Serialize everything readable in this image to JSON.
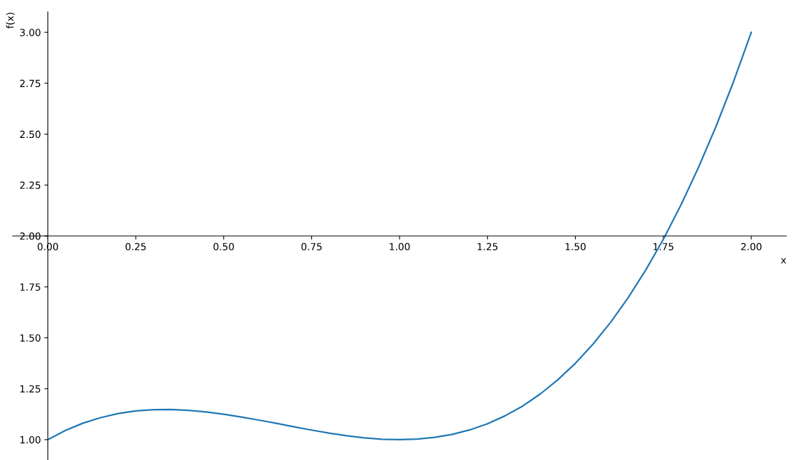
{
  "chart_data": {
    "type": "line",
    "xlabel": "x",
    "ylabel": "f(x)",
    "x": [
      0,
      0.05,
      0.1,
      0.15,
      0.2,
      0.25,
      0.3,
      0.35,
      0.4,
      0.45,
      0.5,
      0.55,
      0.6,
      0.65,
      0.7,
      0.75,
      0.8,
      0.85,
      0.9,
      0.95,
      1.0,
      1.05,
      1.1,
      1.15,
      1.2,
      1.25,
      1.3,
      1.35,
      1.4,
      1.45,
      1.5,
      1.55,
      1.6,
      1.65,
      1.7,
      1.75,
      1.8,
      1.85,
      1.9,
      1.95,
      2.0
    ],
    "series": [
      {
        "color": "#1f77b4",
        "values": [
          1,
          1.045,
          1.081,
          1.108,
          1.128,
          1.141,
          1.147,
          1.148,
          1.144,
          1.136,
          1.125,
          1.111,
          1.096,
          1.08,
          1.063,
          1.047,
          1.032,
          1.019,
          1.009,
          1.002,
          1,
          1.003,
          1.011,
          1.026,
          1.048,
          1.078,
          1.117,
          1.165,
          1.224,
          1.294,
          1.375,
          1.469,
          1.576,
          1.697,
          1.833,
          1.984,
          2.152,
          2.337,
          2.539,
          2.76,
          3
        ]
      }
    ],
    "xlim": [
      -0.1,
      2.1
    ],
    "ylim": [
      0.9,
      3.1
    ],
    "xticks": [
      {
        "value": 0,
        "label": "0.00"
      },
      {
        "value": 0.25,
        "label": "0.25"
      },
      {
        "value": 0.5,
        "label": "0.50"
      },
      {
        "value": 0.75,
        "label": "0.75"
      },
      {
        "value": 1,
        "label": "1.00"
      },
      {
        "value": 1.25,
        "label": "1.25"
      },
      {
        "value": 1.5,
        "label": "1.50"
      },
      {
        "value": 1.75,
        "label": "1.75"
      },
      {
        "value": 2,
        "label": "2.00"
      }
    ],
    "yticks": [
      {
        "value": 1,
        "label": "1.00"
      },
      {
        "value": 1.25,
        "label": "1.25"
      },
      {
        "value": 1.5,
        "label": "1.50"
      },
      {
        "value": 1.75,
        "label": "1.75"
      },
      {
        "value": 2,
        "label": "2.00"
      },
      {
        "value": 2.25,
        "label": "2.25"
      },
      {
        "value": 2.5,
        "label": "2.50"
      },
      {
        "value": 2.75,
        "label": "2.75"
      },
      {
        "value": 3,
        "label": "3.00"
      }
    ],
    "grid": false,
    "legend": false,
    "marker": "none",
    "line_style": "solid"
  }
}
